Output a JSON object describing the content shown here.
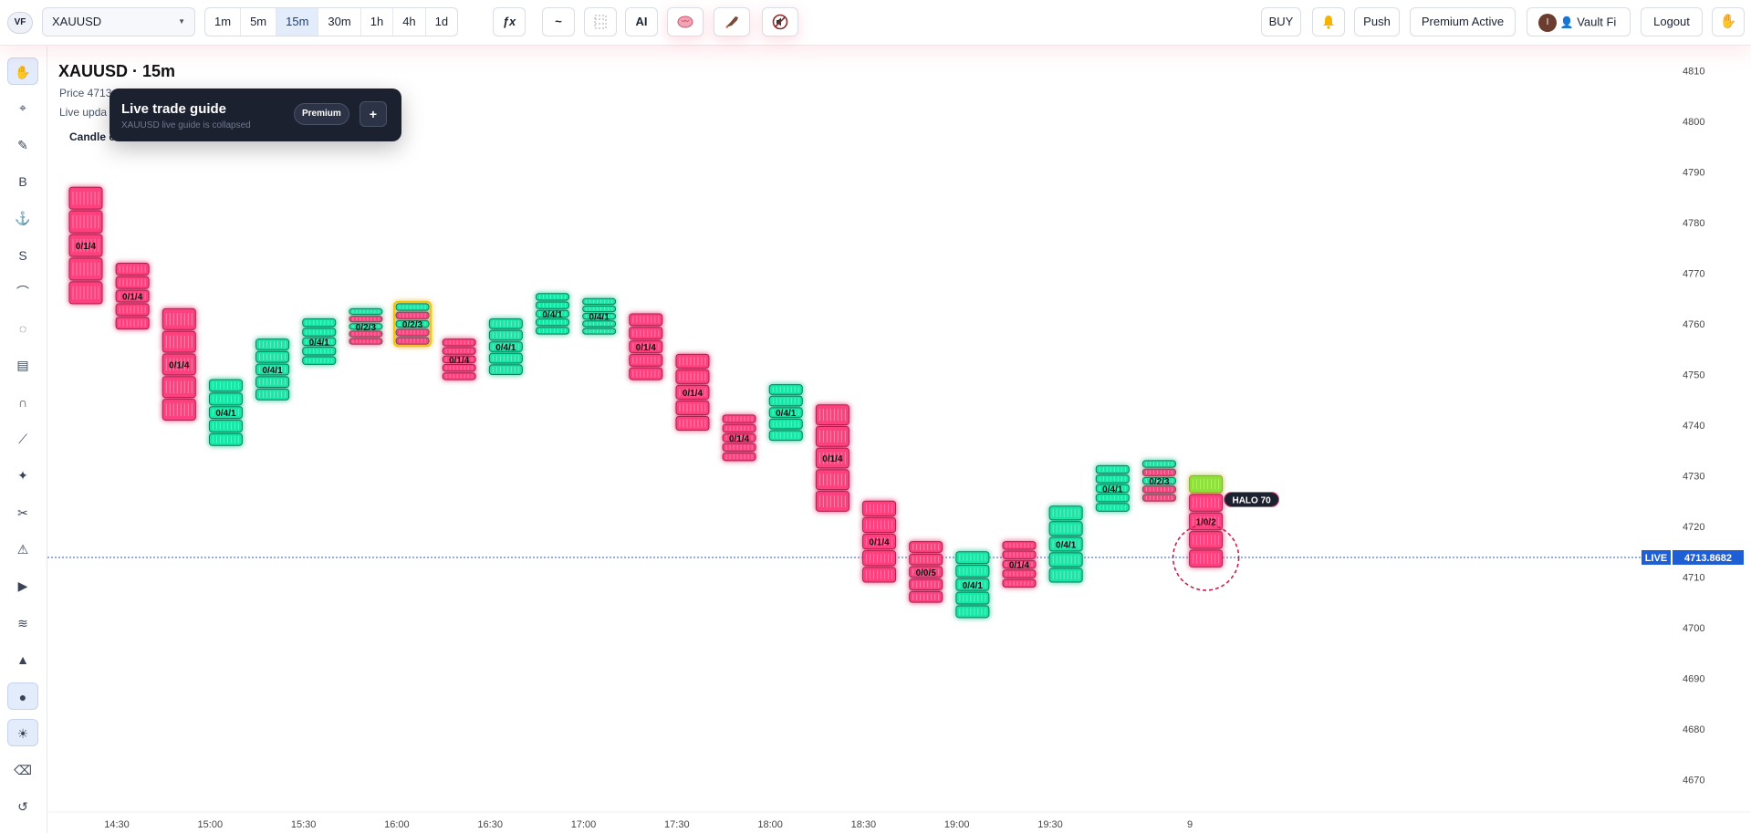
{
  "app": {
    "logo": "VF"
  },
  "symbol": {
    "value": "XAUUSD"
  },
  "timeframes": [
    {
      "label": "1m",
      "active": false
    },
    {
      "label": "5m",
      "active": false
    },
    {
      "label": "15m",
      "active": true
    },
    {
      "label": "30m",
      "active": false
    },
    {
      "label": "1h",
      "active": false
    },
    {
      "label": "4h",
      "active": false
    },
    {
      "label": "1d",
      "active": false
    }
  ],
  "toolbar": {
    "fx_label": "ƒx",
    "wave_label": "~",
    "grid_icon": "grid-icon",
    "ai_label": "AI",
    "brain_icon": "brain-icon",
    "rocket_icon": "rocket-icon",
    "mute_icon": "mute-icon",
    "buy_label": "BUY",
    "bell_icon": "bell-icon",
    "push_label": "Push",
    "premium_label": "Premium Active",
    "user_initial": "I",
    "user_name": "Vault Fi",
    "logout_label": "Logout",
    "hand_icon": "hand-icon"
  },
  "sidebar_tools": [
    {
      "name": "hand-tool",
      "glyph": "✋",
      "active": true
    },
    {
      "name": "crosshair-tool",
      "glyph": "⌖",
      "active": false
    },
    {
      "name": "pen-tool",
      "glyph": "✎",
      "active": false
    },
    {
      "name": "b-tool",
      "glyph": "B",
      "active": false
    },
    {
      "name": "anchor-tool",
      "glyph": "⚓",
      "active": false
    },
    {
      "name": "s-tool",
      "glyph": "S",
      "active": false
    },
    {
      "name": "curve-tool",
      "glyph": "⌒",
      "active": false
    },
    {
      "name": "circle-tool",
      "glyph": "◌",
      "active": false
    },
    {
      "name": "stack-tool",
      "glyph": "▤",
      "active": false
    },
    {
      "name": "magnet-tool",
      "glyph": "∩",
      "active": false
    },
    {
      "name": "ruler-tool",
      "glyph": "⟋",
      "active": false
    },
    {
      "name": "sparkle-tool",
      "glyph": "✦",
      "active": false
    },
    {
      "name": "scissors-tool",
      "glyph": "✂",
      "active": false
    },
    {
      "name": "warning-tool",
      "glyph": "⚠",
      "active": false
    },
    {
      "name": "play-tool",
      "glyph": "▶",
      "active": false
    },
    {
      "name": "wave-tool",
      "glyph": "≋",
      "active": false
    },
    {
      "name": "triangle-tool",
      "glyph": "▲",
      "active": false
    },
    {
      "name": "dot-tool",
      "glyph": "●",
      "active": true
    },
    {
      "name": "sun-tool",
      "glyph": "☀",
      "active": true
    },
    {
      "name": "erase-tool",
      "glyph": "⌫",
      "active": false
    },
    {
      "name": "undo-tool",
      "glyph": "↺",
      "active": false
    }
  ],
  "chart_header": {
    "title": "XAUUSD · 15m",
    "price_line": "Price 4713",
    "update_line": "Live upda",
    "candle_line": "Candle c"
  },
  "guide": {
    "title": "Live trade guide",
    "subtitle": "XAUUSD live guide is collapsed",
    "badge": "Premium",
    "plus": "+"
  },
  "live": {
    "tag": "LIVE",
    "price": "4713.8682",
    "value": 4713.8682
  },
  "halo": {
    "label": "HALO 70"
  },
  "chart_data": {
    "type": "candlestick",
    "symbol": "XAUUSD",
    "timeframe": "15m",
    "x_ticks": [
      "14:30",
      "15:00",
      "15:30",
      "16:00",
      "16:30",
      "17:00",
      "17:30",
      "18:00",
      "18:30",
      "19:00",
      "19:30",
      "9"
    ],
    "y_ticks": [
      4810,
      4800,
      4790,
      4780,
      4770,
      4760,
      4750,
      4740,
      4730,
      4720,
      4710,
      4700,
      4690,
      4680,
      4670
    ],
    "ylim": [
      4667,
      4813
    ],
    "candles": [
      {
        "open": 4787,
        "close": 4764,
        "dir": "down",
        "label": "0/1/4"
      },
      {
        "open": 4772,
        "close": 4759,
        "dir": "down",
        "label": "0/1/4"
      },
      {
        "open": 4763,
        "close": 4741,
        "dir": "down",
        "label": "0/1/4"
      },
      {
        "open": 4736,
        "close": 4749,
        "dir": "up",
        "label": "0/4/1"
      },
      {
        "open": 4745,
        "close": 4757,
        "dir": "up",
        "label": "0/4/1"
      },
      {
        "open": 4752,
        "close": 4761,
        "dir": "up",
        "label": "0/4/1"
      },
      {
        "open": 4756,
        "close": 4763,
        "dir": "mixed",
        "label": "0/2/3"
      },
      {
        "open": 4756,
        "close": 4764,
        "dir": "mixed",
        "label": "0/2/3",
        "highlight": true
      },
      {
        "open": 4757,
        "close": 4749,
        "dir": "down",
        "label": "0/1/4"
      },
      {
        "open": 4750,
        "close": 4761,
        "dir": "up",
        "label": "0/4/1"
      },
      {
        "open": 4758,
        "close": 4766,
        "dir": "up",
        "label": "0/4/1"
      },
      {
        "open": 4758,
        "close": 4765,
        "dir": "up",
        "label": "0/4/1"
      },
      {
        "open": 4762,
        "close": 4749,
        "dir": "down",
        "label": "0/1/4"
      },
      {
        "open": 4754,
        "close": 4739,
        "dir": "down",
        "label": "0/1/4"
      },
      {
        "open": 4742,
        "close": 4733,
        "dir": "down",
        "label": "0/1/4"
      },
      {
        "open": 4737,
        "close": 4748,
        "dir": "up",
        "label": "0/4/1"
      },
      {
        "open": 4744,
        "close": 4723,
        "dir": "down",
        "label": "0/1/4"
      },
      {
        "open": 4725,
        "close": 4709,
        "dir": "down",
        "label": "0/1/4"
      },
      {
        "open": 4717,
        "close": 4705,
        "dir": "down",
        "label": "0/0/5"
      },
      {
        "open": 4702,
        "close": 4715,
        "dir": "up",
        "label": "0/4/1"
      },
      {
        "open": 4717,
        "close": 4708,
        "dir": "down",
        "label": "0/1/4"
      },
      {
        "open": 4709,
        "close": 4724,
        "dir": "up",
        "label": "0/4/1"
      },
      {
        "open": 4723,
        "close": 4732,
        "dir": "up",
        "label": "0/4/1"
      },
      {
        "open": 4725,
        "close": 4733,
        "dir": "mixed",
        "label": "0/2/3"
      },
      {
        "open": 4712,
        "close": 4730,
        "dir": "live",
        "label": "1/0/2"
      }
    ]
  }
}
